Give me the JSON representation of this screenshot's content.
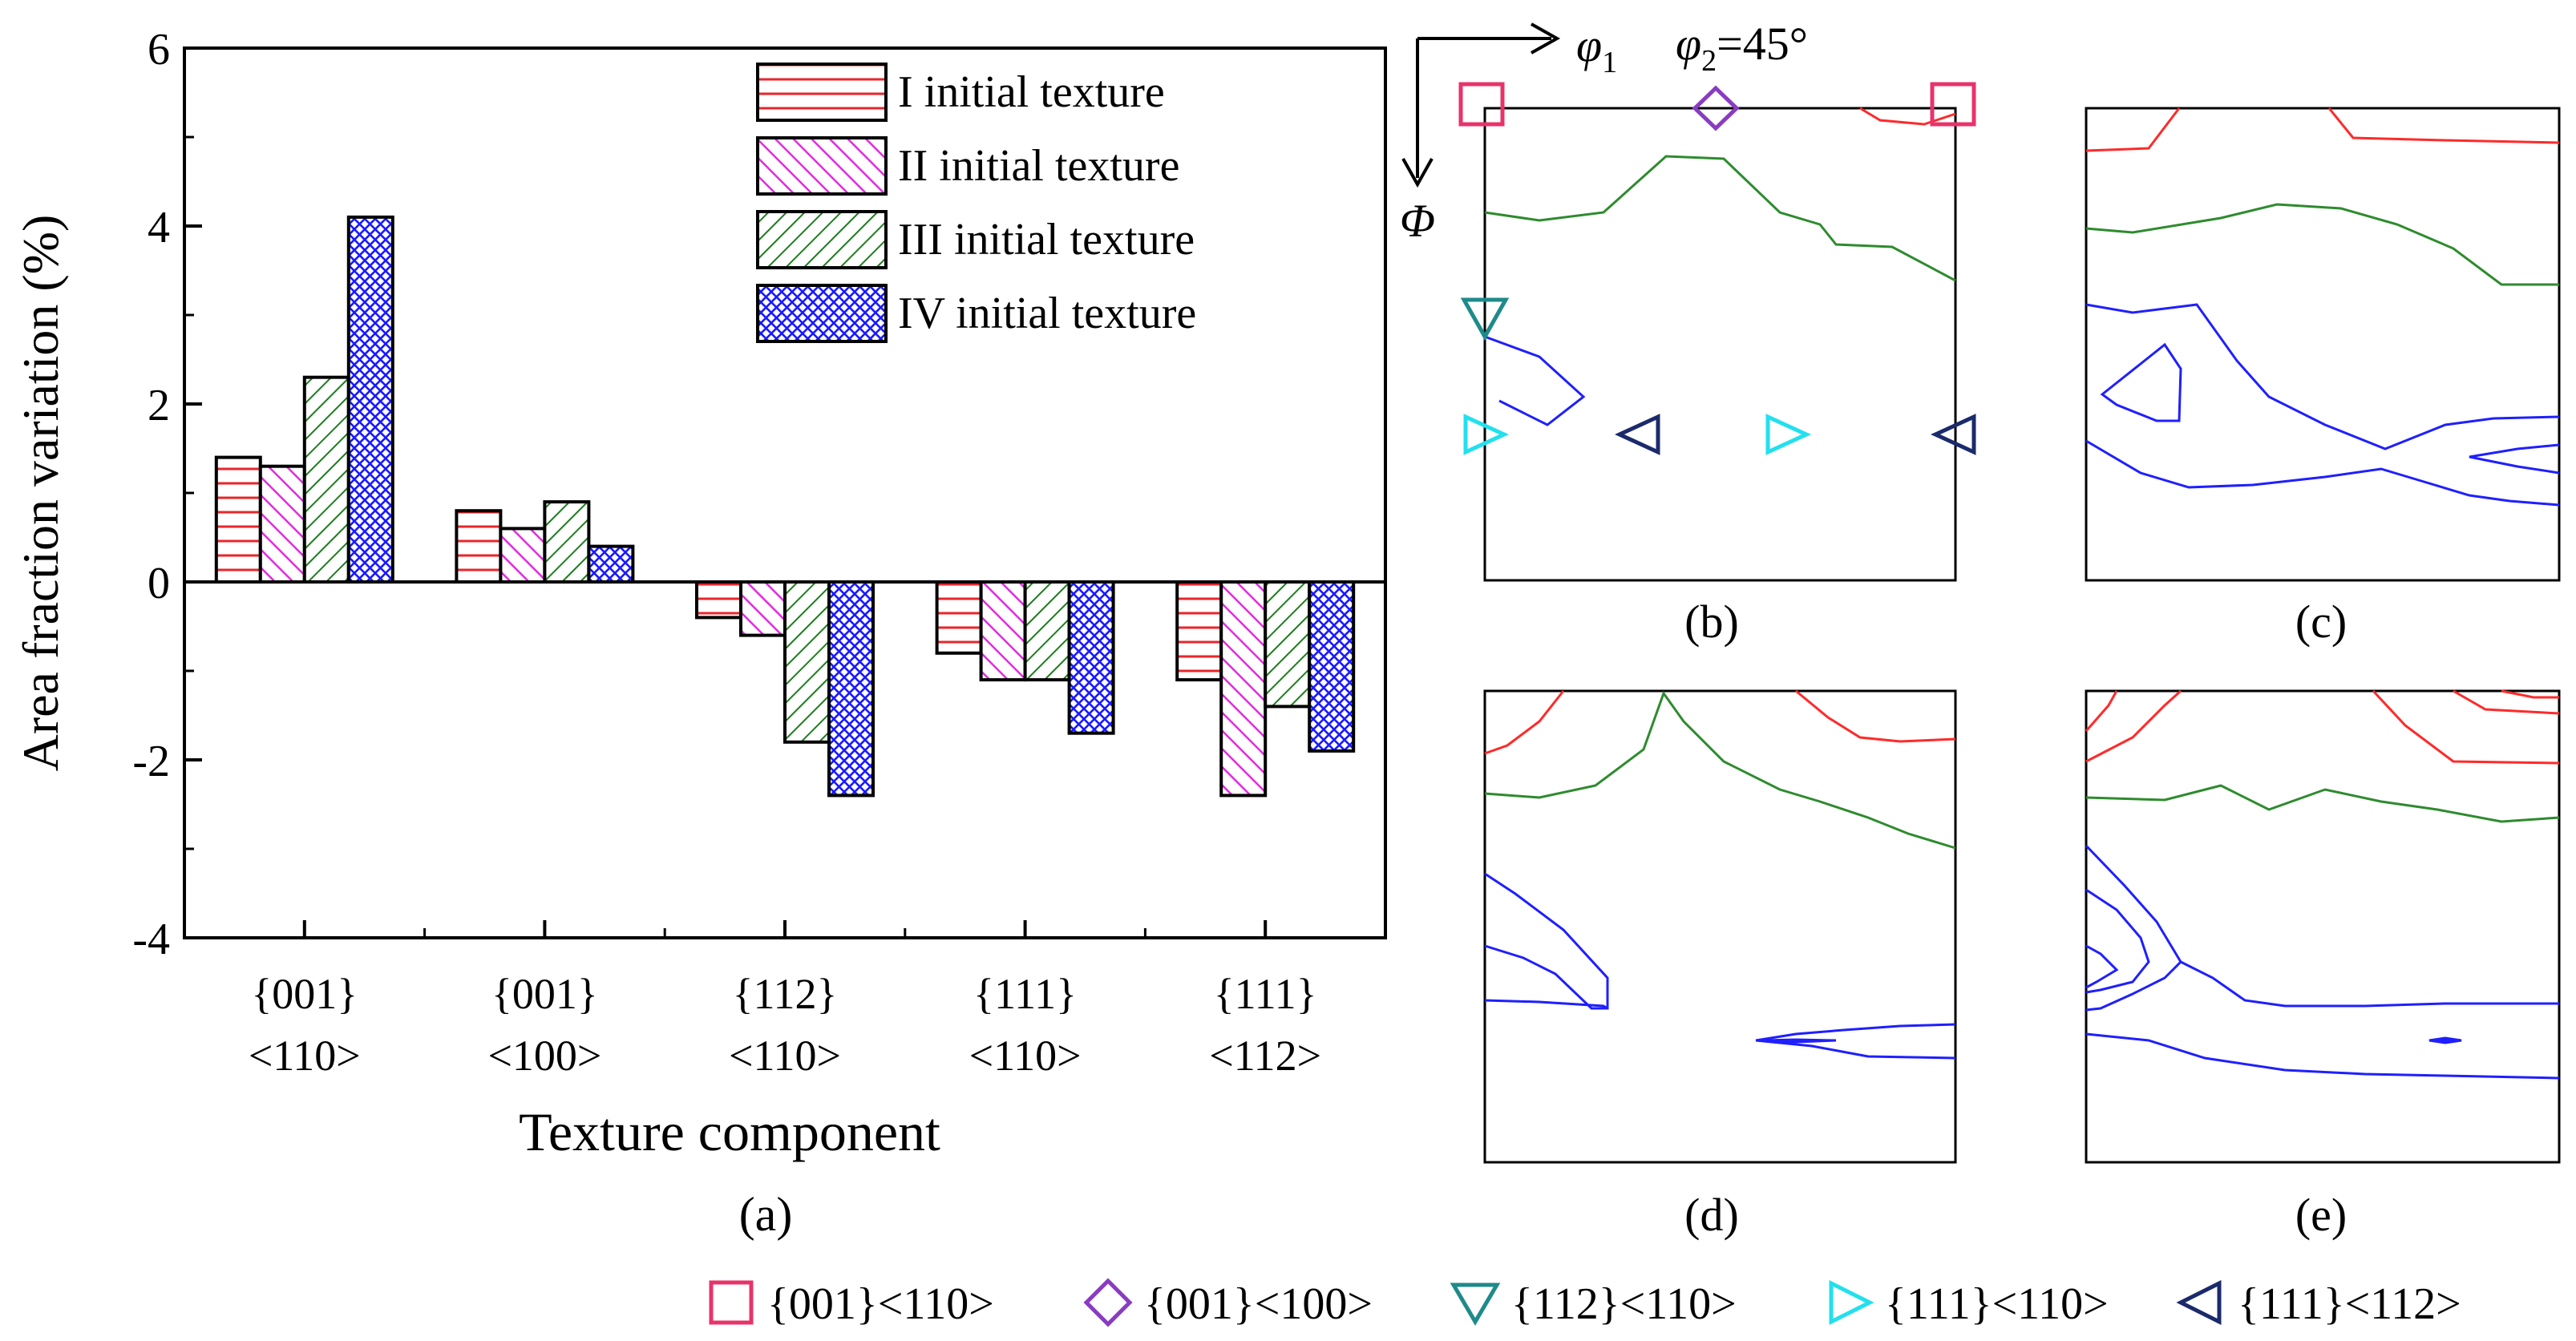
{
  "chart_data": [
    {
      "type": "bar",
      "panel_label": "(a)",
      "ylabel": "Area fraction variation (%)",
      "xlabel": "Texture component",
      "ylim": [
        -4,
        6
      ],
      "yticks": [
        "-4",
        "-2",
        "0",
        "2",
        "4",
        "6"
      ],
      "categories": [
        {
          "line1": "{001}",
          "line2": "<110>"
        },
        {
          "line1": "{001}",
          "line2": "<100>"
        },
        {
          "line1": "{112}",
          "line2": "<110>"
        },
        {
          "line1": "{111}",
          "line2": "<110>"
        },
        {
          "line1": "{111}",
          "line2": "<112>"
        }
      ],
      "series": [
        {
          "name": "I initial texture",
          "color": "#e8262b",
          "pattern": "horizontal",
          "values": [
            1.4,
            0.8,
            -0.4,
            -0.8,
            -1.1
          ]
        },
        {
          "name": "II initial texture",
          "color": "#e22ce0",
          "pattern": "diagonal",
          "values": [
            1.3,
            0.6,
            -0.6,
            -1.1,
            -2.4
          ]
        },
        {
          "name": "III initial texture",
          "color": "#1e7d1e",
          "pattern": "diagonal-dense",
          "values": [
            2.3,
            0.9,
            -1.8,
            -1.1,
            -1.4
          ]
        },
        {
          "name": "IV initial texture",
          "color": "#1a1aff",
          "pattern": "crosshatch",
          "values": [
            4.1,
            0.4,
            -2.4,
            -1.7,
            -1.9
          ]
        }
      ]
    },
    {
      "type": "contour",
      "panels": [
        {
          "label": "(b)"
        },
        {
          "label": "(c)"
        },
        {
          "label": "(d)"
        },
        {
          "label": "(e)"
        }
      ],
      "axis_labels": {
        "phi1": "φ",
        "phi1_sub": "1",
        "Phi": "Φ",
        "phi2": "φ",
        "phi2_sub": "2",
        "phi2_value": "=45°"
      },
      "contour_colors": {
        "high": "#ff2a2a",
        "mid": "#2e8b2e",
        "low": "#1f1fff"
      }
    }
  ],
  "legend": {
    "items": [
      {
        "label": "{001}<110>",
        "symbol": "square",
        "color": "#e8336a"
      },
      {
        "label": "{001}<100>",
        "symbol": "diamond",
        "color": "#8a3cc0"
      },
      {
        "label": "{112}<110>",
        "symbol": "triangle-down",
        "color": "#1f8a8a"
      },
      {
        "label": "{111}<110>",
        "symbol": "triangle-right",
        "color": "#22e0ee"
      },
      {
        "label": "{111}<112>",
        "symbol": "triangle-left",
        "color": "#1b2a6b"
      }
    ]
  }
}
